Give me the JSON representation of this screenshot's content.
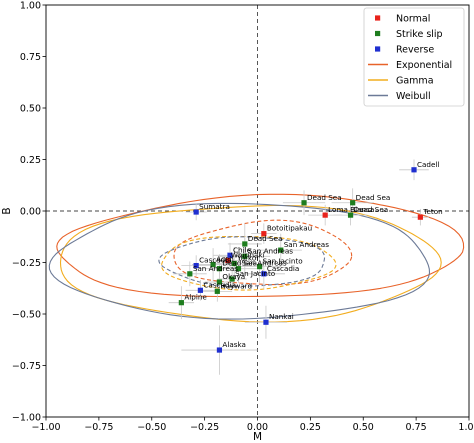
{
  "chart_data": {
    "type": "scatter",
    "title": "",
    "xlabel": "M",
    "ylabel": "B",
    "xlim": [
      -1.0,
      1.0
    ],
    "ylim": [
      -1.0,
      1.0
    ],
    "xticks": [
      "−1.00",
      "−0.75",
      "−0.50",
      "−0.25",
      "0.00",
      "0.25",
      "0.50",
      "0.75",
      "1.00"
    ],
    "yticks": [
      "−1.00",
      "−0.75",
      "−0.50",
      "−0.25",
      "0.00",
      "0.25",
      "0.50",
      "0.75",
      "1.00"
    ],
    "xtick_values": [
      -1.0,
      -0.75,
      -0.5,
      -0.25,
      0.0,
      0.25,
      0.5,
      0.75,
      1.0
    ],
    "ytick_values": [
      -1.0,
      -0.75,
      -0.5,
      -0.25,
      0.0,
      0.25,
      0.5,
      0.75,
      1.0
    ],
    "reference_lines": {
      "x": 0.0,
      "y": 0.0,
      "style": "dashed",
      "color": "#444444"
    },
    "legend": {
      "position": "top-right",
      "entries": [
        {
          "label": "Normal",
          "kind": "marker",
          "color": "#e8221b"
        },
        {
          "label": "Strike slip",
          "kind": "marker",
          "color": "#1e7d1e"
        },
        {
          "label": "Reverse",
          "kind": "marker",
          "color": "#1f2fd0"
        },
        {
          "label": "Exponential",
          "kind": "line",
          "color": "#e8632a"
        },
        {
          "label": "Gamma",
          "kind": "line",
          "color": "#f2ad1f"
        },
        {
          "label": "Weibull",
          "kind": "line",
          "color": "#6c7a97"
        }
      ]
    },
    "points": [
      {
        "label": "Cadell",
        "type": "Reverse",
        "x": 0.74,
        "y": 0.2,
        "xerr": 0.07,
        "yerr": 0.05
      },
      {
        "label": "Dead Sea",
        "type": "Strike slip",
        "x": 0.22,
        "y": 0.04,
        "xerr": 0.1,
        "yerr": 0.06
      },
      {
        "label": "Dead Sea",
        "type": "Strike slip",
        "x": 0.45,
        "y": 0.04,
        "xerr": 0.1,
        "yerr": 0.07
      },
      {
        "label": "Dead Sea",
        "type": "Strike slip",
        "x": 0.44,
        "y": -0.02,
        "xerr": 0.08,
        "yerr": 0.05
      },
      {
        "label": "Loma Blanca",
        "type": "Normal",
        "x": 0.32,
        "y": -0.02,
        "xerr": 0.08,
        "yerr": 0.05
      },
      {
        "label": "Teton",
        "type": "Normal",
        "x": 0.77,
        "y": -0.03,
        "xerr": 0.04,
        "yerr": 0.04
      },
      {
        "label": "Sumatra",
        "type": "Reverse",
        "x": -0.29,
        "y": -0.005,
        "xerr": 0.05,
        "yerr": 0.04
      },
      {
        "label": "Botoitipakau",
        "type": "Normal",
        "x": 0.03,
        "y": -0.11,
        "xerr": 0.06,
        "yerr": 0.05
      },
      {
        "label": "Dead Sea",
        "type": "Strike slip",
        "x": -0.06,
        "y": -0.16,
        "xerr": 0.08,
        "yerr": 0.1
      },
      {
        "label": "San Andreas",
        "type": "Strike slip",
        "x": 0.11,
        "y": -0.19,
        "xerr": 0.1,
        "yerr": 0.08
      },
      {
        "label": "Chile",
        "type": "Reverse",
        "x": -0.13,
        "y": -0.215,
        "xerr": 0.08,
        "yerr": 0.06
      },
      {
        "label": "San Andreas",
        "type": "Strike slip",
        "x": -0.06,
        "y": -0.22,
        "xerr": 0.12,
        "yerr": 0.09
      },
      {
        "label": "Whirinaki",
        "type": "Normal",
        "x": -0.14,
        "y": -0.24,
        "xerr": 0.06,
        "yerr": 0.04
      },
      {
        "label": "Cascadia",
        "type": "Reverse",
        "x": -0.29,
        "y": -0.265,
        "xerr": 0.07,
        "yerr": 0.05
      },
      {
        "label": "Aceh",
        "type": "Strike slip",
        "x": -0.21,
        "y": -0.26,
        "xerr": 0.1,
        "yerr": 0.08
      },
      {
        "label": "Yorkor",
        "type": "Strike slip",
        "x": -0.11,
        "y": -0.255,
        "xerr": 0.1,
        "yerr": 0.08
      },
      {
        "label": "San Jacinto",
        "type": "Strike slip",
        "x": 0.01,
        "y": -0.27,
        "xerr": 0.1,
        "yerr": 0.08
      },
      {
        "label": "Dead Sea",
        "type": "Strike slip",
        "x": -0.18,
        "y": -0.28,
        "xerr": 0.09,
        "yerr": 0.07
      },
      {
        "label": "San Andreas",
        "type": "Strike slip",
        "x": -0.09,
        "y": -0.28,
        "xerr": 0.11,
        "yerr": 0.07
      },
      {
        "label": "San Andreas",
        "type": "Strike slip",
        "x": -0.32,
        "y": -0.305,
        "xerr": 0.08,
        "yerr": 0.06
      },
      {
        "label": "Cascadia",
        "type": "Reverse",
        "x": 0.03,
        "y": -0.305,
        "xerr": 0.1,
        "yerr": 0.07
      },
      {
        "label": "Okaya",
        "type": "Strike slip",
        "x": -0.18,
        "y": -0.345,
        "xerr": 0.07,
        "yerr": 0.05
      },
      {
        "label": "San Jacinto",
        "type": "Strike slip",
        "x": -0.12,
        "y": -0.33,
        "xerr": 0.07,
        "yerr": 0.05
      },
      {
        "label": "Cascadia",
        "type": "Reverse",
        "x": -0.27,
        "y": -0.385,
        "xerr": 0.07,
        "yerr": 0.05
      },
      {
        "label": "Hayward",
        "type": "Strike slip",
        "x": -0.19,
        "y": -0.39,
        "xerr": 0.07,
        "yerr": 0.05
      },
      {
        "label": "Alpine",
        "type": "Strike slip",
        "x": -0.36,
        "y": -0.445,
        "xerr": 0.06,
        "yerr": 0.08
      },
      {
        "label": "Nankai",
        "type": "Reverse",
        "x": 0.04,
        "y": -0.54,
        "xerr": 0.1,
        "yerr": 0.08
      },
      {
        "label": "Alaska",
        "type": "Reverse",
        "x": -0.18,
        "y": -0.675,
        "xerr": 0.18,
        "yerr": 0.12
      }
    ],
    "contours": [
      {
        "dist": "Exponential",
        "style": "solid",
        "cx": -0.005,
        "cy": -0.2,
        "rx": 0.955,
        "ry": 0.22,
        "shift": 0.06
      },
      {
        "dist": "Exponential",
        "style": "dashed",
        "cx": 0.02,
        "cy": -0.22,
        "rx": 0.42,
        "ry": 0.14,
        "shift": 0.03
      },
      {
        "dist": "Gamma",
        "style": "solid",
        "cx": -0.04,
        "cy": -0.25,
        "rx": 0.9,
        "ry": 0.28,
        "shift": 0.0
      },
      {
        "dist": "Gamma",
        "style": "dashed",
        "cx": -0.05,
        "cy": -0.25,
        "rx": 0.41,
        "ry": 0.13,
        "shift": 0.0
      },
      {
        "dist": "Weibull",
        "style": "solid",
        "cx": -0.07,
        "cy": -0.245,
        "rx": 0.89,
        "ry": 0.28,
        "shift": 0.0
      },
      {
        "dist": "Weibull",
        "style": "dashed",
        "cx": -0.06,
        "cy": -0.245,
        "rx": 0.39,
        "ry": 0.12,
        "shift": 0.0
      }
    ]
  }
}
